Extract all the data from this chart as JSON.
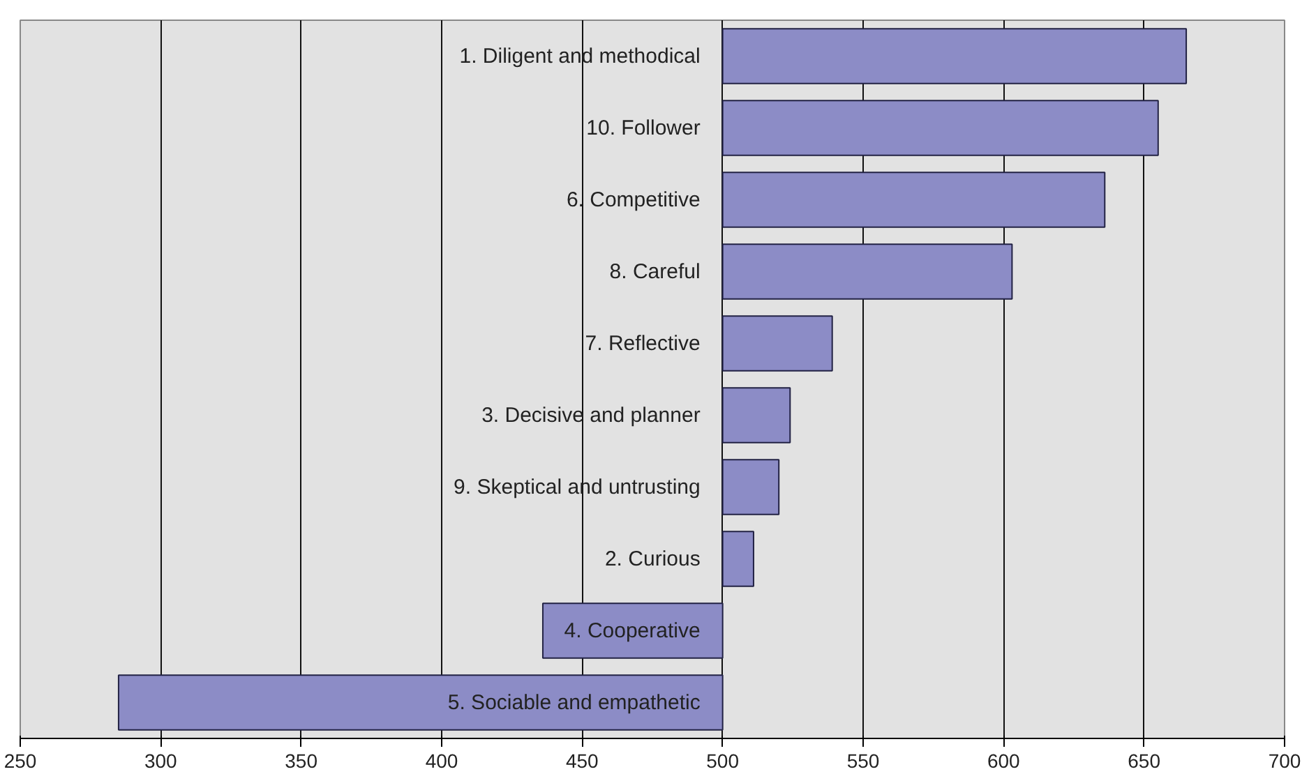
{
  "chart_data": {
    "type": "bar",
    "orientation": "horizontal",
    "categories": [
      "1. Diligent and methodical",
      "10. Follower",
      "6. Competitive",
      "8. Careful",
      "7. Reflective",
      "3. Decisive and planner",
      "9. Skeptical and untrusting",
      "2. Curious",
      "4. Cooperative",
      "5. Sociable and empathetic"
    ],
    "base": [
      500,
      500,
      500,
      500,
      500,
      500,
      500,
      500,
      500,
      500
    ],
    "values": [
      165,
      155,
      136,
      103,
      39,
      24,
      20,
      11,
      -64,
      -215
    ],
    "color": "#8c8cc6",
    "xlim": [
      250,
      700
    ],
    "xticks": [
      250,
      300,
      350,
      400,
      450,
      500,
      550,
      600,
      650,
      700
    ],
    "grid": "x"
  }
}
